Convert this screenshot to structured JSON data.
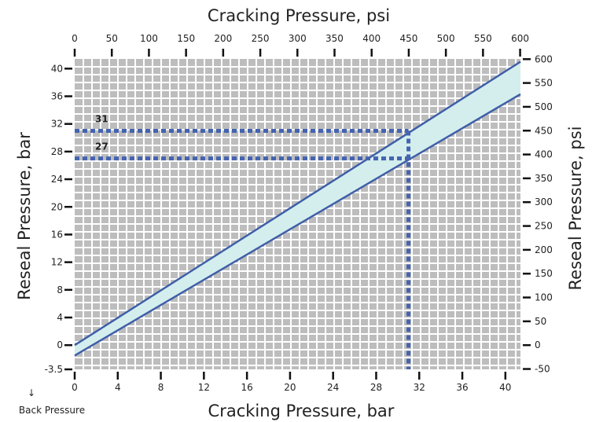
{
  "colors": {
    "grid_background": "#bdbdbd",
    "grid_lines": "#ffffff",
    "band_fill": "#d4eeee",
    "band_edge": "#3f5fa8",
    "reference_lines": "#4463b0",
    "text": "#222222"
  },
  "chart_data": {
    "type": "line",
    "title": "",
    "top_axis_title": "Cracking Pressure, psi",
    "bottom_axis_title": "Cracking Pressure, bar",
    "left_axis_title": "Reseal Pressure, bar",
    "right_axis_title": "Reseal Pressure, psi",
    "back_pressure_label": "Back Pressure",
    "xlim": [
      0,
      41.4
    ],
    "ylim": [
      -3.5,
      41.4
    ],
    "x_ticks_bar": [
      "0",
      "4",
      "8",
      "12",
      "16",
      "20",
      "24",
      "28",
      "32",
      "36",
      "40"
    ],
    "x_ticks_psi": [
      "0",
      "50",
      "100",
      "150",
      "200",
      "250",
      "300",
      "350",
      "400",
      "450",
      "500",
      "550",
      "600"
    ],
    "y_ticks_bar": [
      "40",
      "36",
      "32",
      "28",
      "24",
      "20",
      "16",
      "12",
      "8",
      "4",
      "0",
      "-3.5"
    ],
    "y_ticks_psi": [
      "600",
      "550",
      "500",
      "450",
      "400",
      "350",
      "300",
      "250",
      "200",
      "150",
      "100",
      "50",
      "0",
      "-50"
    ],
    "series": [
      {
        "x": [
          0,
          41.4
        ],
        "y": [
          0,
          41
        ]
      },
      {
        "x": [
          0,
          41.4
        ],
        "y": [
          -1.5,
          36.3
        ]
      }
    ],
    "reference": {
      "cracking_pressure": 31,
      "reseal_values": [
        31,
        27
      ],
      "reseal_labels": [
        "31",
        "27"
      ]
    },
    "grid": true
  }
}
